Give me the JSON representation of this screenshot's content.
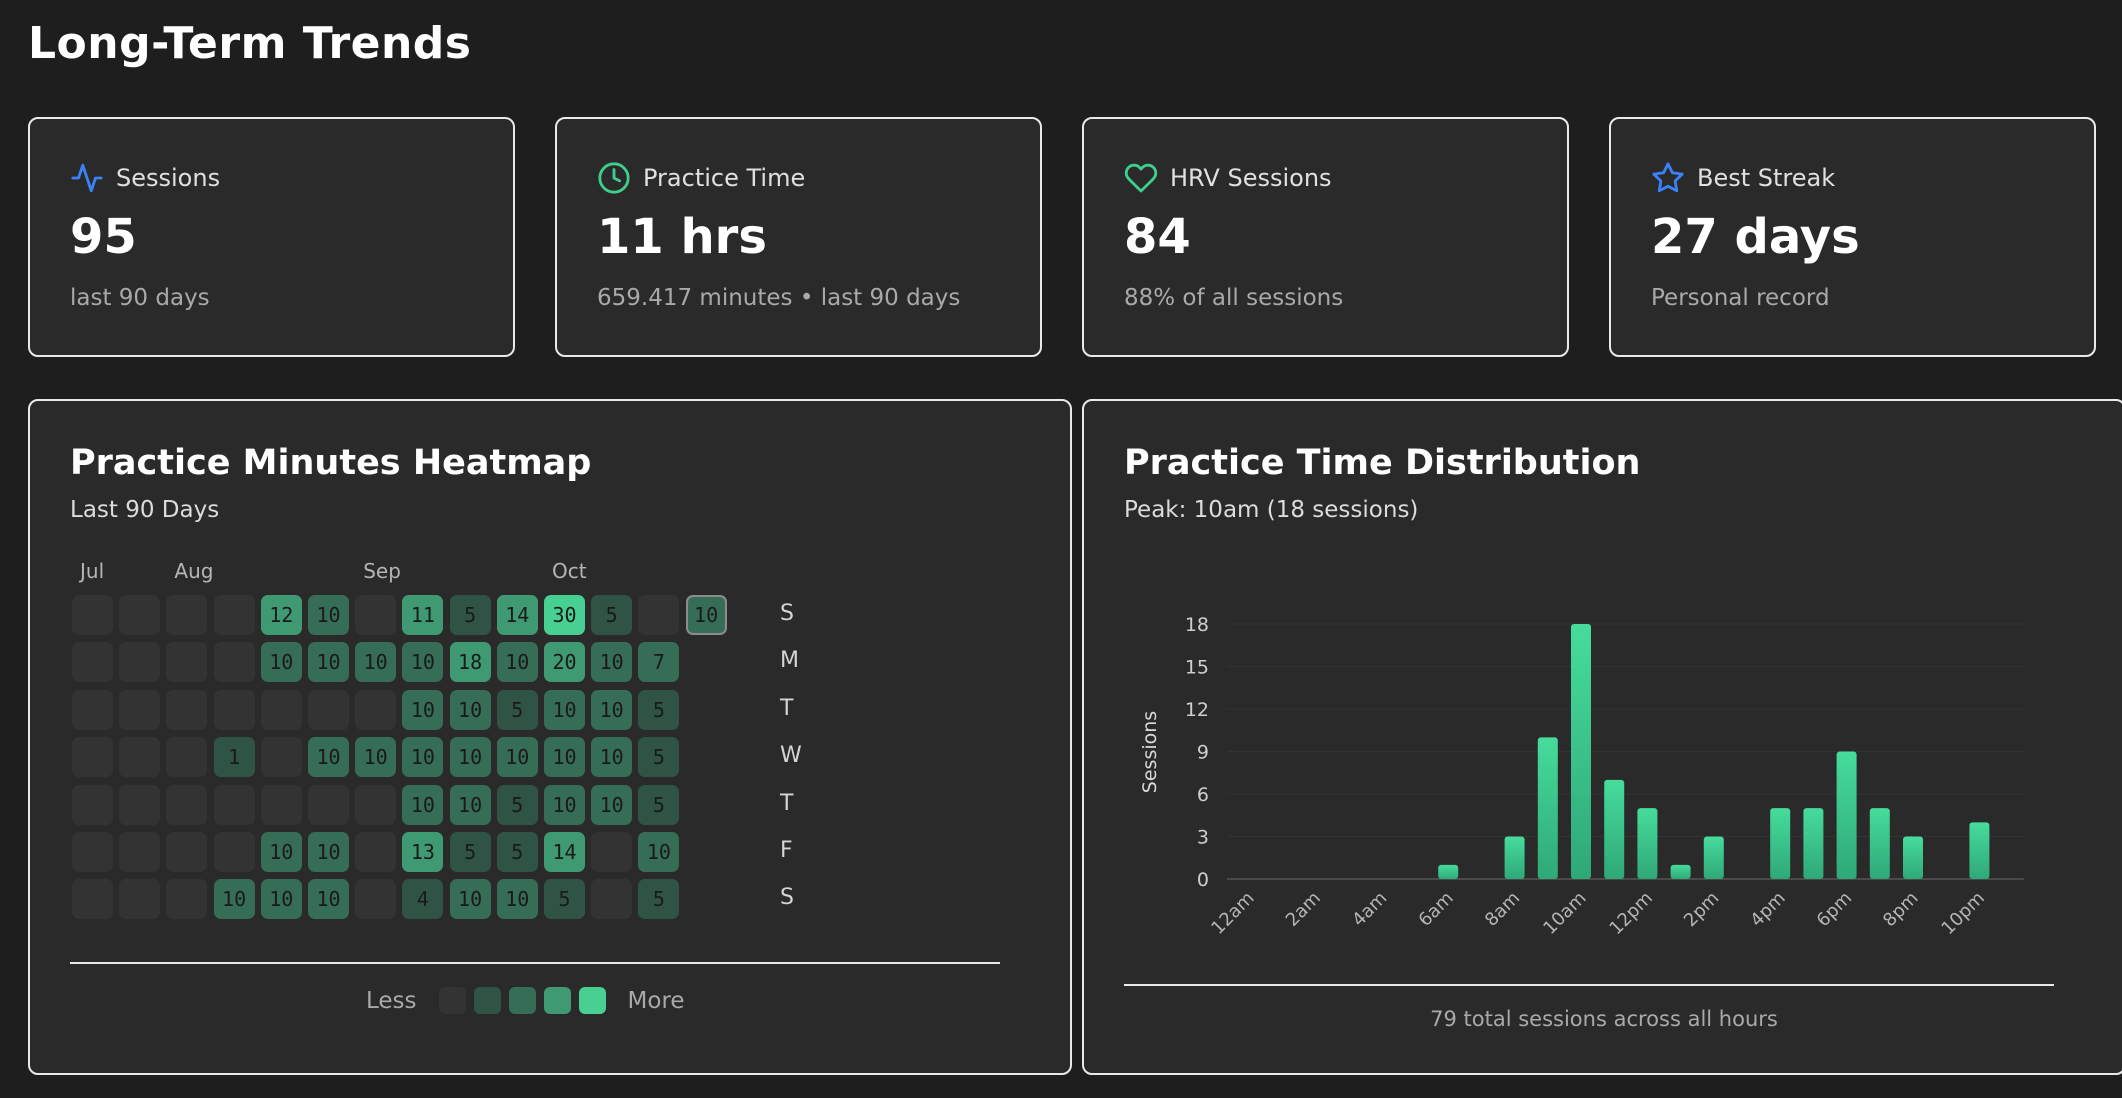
{
  "page": {
    "title": "Long-Term Trends"
  },
  "colors": {
    "background": "#1e1e1e",
    "card": "#2a2a2a",
    "accent_green": "#3ecf8e",
    "accent_blue": "#3b82f6",
    "heat_levels": [
      "#333333",
      "#2f5446",
      "#366d57",
      "#3f9a73",
      "#48d093"
    ]
  },
  "stats": [
    {
      "label": "Sessions",
      "value": "95",
      "sub": "last 90 days",
      "icon": "activity-icon"
    },
    {
      "label": "Practice Time",
      "value": "11 hrs",
      "sub": "659.417 minutes • last 90 days",
      "icon": "clock-icon"
    },
    {
      "label": "HRV Sessions",
      "value": "84",
      "sub": "88% of all sessions",
      "icon": "heart-icon"
    },
    {
      "label": "Best Streak",
      "value": "27 days",
      "sub": "Personal record",
      "icon": "star-icon"
    }
  ],
  "heatmap": {
    "title": "Practice Minutes Heatmap",
    "subtitle": "Last 90 Days",
    "months": [
      {
        "label": "Jul",
        "col": 0
      },
      {
        "label": "Aug",
        "col": 2
      },
      {
        "label": "Sep",
        "col": 6
      },
      {
        "label": "Oct",
        "col": 10
      }
    ],
    "days": [
      "S",
      "M",
      "T",
      "W",
      "T",
      "F",
      "S"
    ],
    "rows": [
      [
        0,
        0,
        0,
        0,
        12,
        10,
        0,
        11,
        5,
        14,
        30,
        5,
        0,
        10
      ],
      [
        0,
        0,
        0,
        0,
        10,
        10,
        10,
        10,
        18,
        10,
        20,
        10,
        7,
        null
      ],
      [
        0,
        0,
        0,
        0,
        0,
        0,
        0,
        10,
        10,
        5,
        10,
        10,
        5,
        null
      ],
      [
        0,
        0,
        0,
        1,
        0,
        10,
        10,
        10,
        10,
        10,
        10,
        10,
        5,
        null
      ],
      [
        0,
        0,
        0,
        0,
        0,
        0,
        0,
        10,
        10,
        5,
        10,
        10,
        5,
        null
      ],
      [
        0,
        0,
        0,
        0,
        10,
        10,
        0,
        13,
        5,
        5,
        14,
        0,
        10,
        null
      ],
      [
        0,
        0,
        0,
        10,
        10,
        10,
        0,
        4,
        10,
        10,
        5,
        0,
        5,
        null
      ]
    ],
    "today": {
      "row": 0,
      "col": 13
    },
    "legend": {
      "less": "Less",
      "more": "More"
    }
  },
  "distribution": {
    "title": "Practice Time Distribution",
    "subtitle": "Peak: 10am (18 sessions)",
    "footer": "79 total sessions across all hours"
  },
  "chart_data": {
    "type": "bar",
    "categories": [
      "12am",
      "1am",
      "2am",
      "3am",
      "4am",
      "5am",
      "6am",
      "7am",
      "8am",
      "9am",
      "10am",
      "11am",
      "12pm",
      "1pm",
      "2pm",
      "3pm",
      "4pm",
      "5pm",
      "6pm",
      "7pm",
      "8pm",
      "9pm",
      "10pm",
      "11pm"
    ],
    "tick_labels": [
      "12am",
      "2am",
      "4am",
      "6am",
      "8am",
      "10am",
      "12pm",
      "2pm",
      "4pm",
      "6pm",
      "8pm",
      "10pm"
    ],
    "values": [
      0,
      0,
      0,
      0,
      0,
      0,
      1,
      0,
      3,
      10,
      18,
      7,
      5,
      1,
      3,
      0,
      5,
      5,
      9,
      5,
      3,
      0,
      4,
      0
    ],
    "ylabel": "Sessions",
    "yticks": [
      0,
      3,
      6,
      9,
      12,
      15,
      18
    ],
    "ylim": [
      0,
      18
    ],
    "grid": true,
    "legend": "none"
  }
}
